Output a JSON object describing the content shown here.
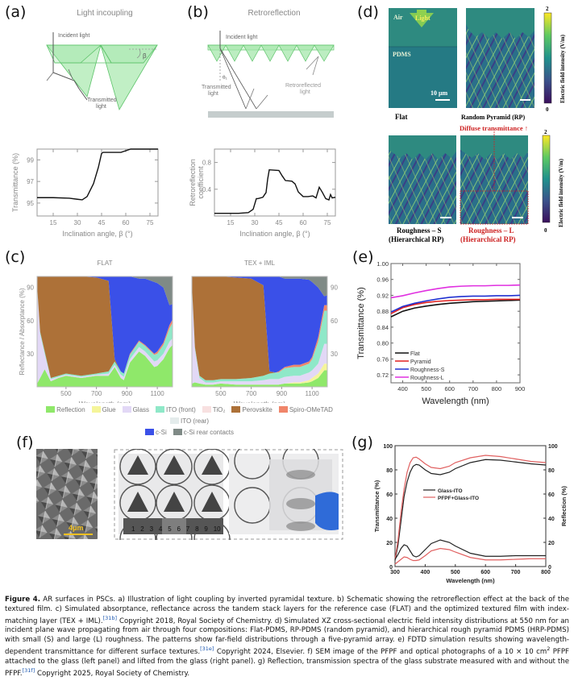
{
  "panels": {
    "a": {
      "label": "(a)",
      "title": "Light incoupling",
      "annotations": {
        "incident": "Incident light",
        "transmitted_1": "Transmitted",
        "transmitted_2": "light",
        "beta": "β"
      },
      "chart": {
        "type": "line",
        "xlabel": "Inclination angle, β (°)",
        "ylabel": "Transmittance (%)",
        "xticks": [
          "15",
          "30",
          "45",
          "60",
          "75"
        ],
        "yticks": [
          "95",
          "97",
          "99"
        ],
        "xlim": [
          5,
          80
        ],
        "ylim": [
          93.8,
          100
        ],
        "x": [
          5,
          15,
          25,
          30,
          33,
          36,
          40,
          43,
          45,
          46,
          50,
          57,
          60,
          63,
          70,
          80
        ],
        "y": [
          95.5,
          95.5,
          95.45,
          95.35,
          95.3,
          95.6,
          96.8,
          98.3,
          99.6,
          99.7,
          99.7,
          99.7,
          99.85,
          100,
          100,
          100
        ]
      }
    },
    "b": {
      "label": "(b)",
      "title": "Retroreflection",
      "annotations": {
        "incident": "Incident light",
        "transmitted_1": "Transmitted",
        "transmitted_2": "light",
        "retro_1": "Retroreflected",
        "retro_2": "light",
        "theta": "θ₁"
      },
      "chart": {
        "type": "line",
        "xlabel": "Inclination angle, β (°)",
        "ylabel_1": "Retroreflection",
        "ylabel_2": "coefficient",
        "xticks": [
          "15",
          "30",
          "45",
          "60",
          "75"
        ],
        "yticks": [
          "0.4",
          "0.8"
        ],
        "xlim": [
          5,
          80
        ],
        "ylim": [
          0,
          1.0
        ],
        "x": [
          5,
          20,
          26,
          29,
          30,
          31,
          32,
          35,
          37,
          38,
          39,
          45,
          47,
          49,
          53,
          55,
          57,
          60,
          63,
          66,
          68,
          70,
          72,
          74,
          76,
          77,
          78,
          80
        ],
        "y": [
          0.04,
          0.04,
          0.05,
          0.1,
          0.18,
          0.26,
          0.26,
          0.28,
          0.35,
          0.55,
          0.69,
          0.68,
          0.6,
          0.53,
          0.52,
          0.48,
          0.36,
          0.29,
          0.29,
          0.3,
          0.27,
          0.43,
          0.35,
          0.26,
          0.24,
          0.32,
          0.27,
          0.28
        ]
      }
    },
    "c": {
      "label": "(c)",
      "chart": {
        "type": "area",
        "xlabel": "Wavelength (nm)",
        "ylabel": "Reflectance / Absorptance (%)",
        "xticks": [
          "500",
          "700",
          "900",
          "1100"
        ],
        "yticks": [
          "30",
          "60",
          "90"
        ],
        "xlim": [
          310,
          1200
        ],
        "ylim": [
          0,
          100
        ],
        "subplots": [
          {
            "title": "FLAT",
            "y_axis_side": "left"
          },
          {
            "title": "TEX + IML",
            "y_axis_side": "right"
          }
        ],
        "legend": [
          {
            "name": "Reflection",
            "color": "#8fe86a"
          },
          {
            "name": "Glue",
            "color": "#f5f59a"
          },
          {
            "name": "Glass",
            "color": "#e2d8f6"
          },
          {
            "name": "ITO (front)",
            "color": "#8fe8c8"
          },
          {
            "name": "TiO₂",
            "color": "#f8e0e0"
          },
          {
            "name": "Perovskite",
            "color": "#ad7138"
          },
          {
            "name": "Spiro-OMeTAD",
            "color": "#f0856a"
          },
          {
            "name": "ITO (rear)",
            "color": "#e4ecec"
          },
          {
            "name": "c-Si",
            "color": "#3a50e8"
          },
          {
            "name": "c-Si rear contacts",
            "color": "#7f8a86"
          }
        ]
      }
    },
    "d": {
      "label": "(d)",
      "maps": [
        {
          "caption_1": "Flat",
          "caption_2": "",
          "red": false
        },
        {
          "caption_1": "Random Pyramid (RP)",
          "caption_2": "",
          "red": false
        },
        {
          "caption_1": "Roughness – S",
          "caption_2": "(Hierarchical RP)",
          "red": false
        },
        {
          "caption_1": "Roughness – L",
          "caption_2": "(Hierarchical RP)",
          "red": true
        }
      ],
      "air_label": "Air",
      "light_label": "Light",
      "pdms_label": "PDMS",
      "scale_label": "10 μm",
      "diffuse_label": "Diffuse transmittance ↑",
      "colorbar": {
        "title": "Electric field intensity (V/m)",
        "max": "2",
        "min": "0"
      }
    },
    "e": {
      "label": "(e)",
      "chart": {
        "type": "line",
        "xlabel": "Wavelength (nm)",
        "ylabel": "Transmittance (%)",
        "xticks": [
          "400",
          "500",
          "600",
          "700",
          "800",
          "900"
        ],
        "yticks": [
          "0.72",
          "0.76",
          "0.80",
          "0.84",
          "0.88",
          "0.92",
          "0.96",
          "1.00"
        ],
        "xlim": [
          350,
          900
        ],
        "ylim": [
          0.7,
          1.0
        ],
        "x": [
          350,
          400,
          450,
          500,
          550,
          600,
          650,
          700,
          750,
          800,
          850,
          900
        ],
        "series": [
          {
            "name": "Flat",
            "color": "#111111",
            "values": [
              0.866,
              0.88,
              0.888,
              0.893,
              0.897,
              0.9,
              0.902,
              0.904,
              0.905,
              0.906,
              0.907,
              0.908
            ]
          },
          {
            "name": "Pyramid",
            "color": "#e02020",
            "values": [
              0.874,
              0.889,
              0.897,
              0.902,
              0.905,
              0.907,
              0.908,
              0.909,
              0.909,
              0.91,
              0.91,
              0.91
            ]
          },
          {
            "name": "Roughness-S",
            "color": "#2030d0",
            "values": [
              0.878,
              0.892,
              0.9,
              0.906,
              0.911,
              0.915,
              0.917,
              0.918,
              0.918,
              0.919,
              0.919,
              0.92
            ]
          },
          {
            "name": "Roughness-L",
            "color": "#e030e0",
            "values": [
              0.914,
              0.919,
              0.926,
              0.932,
              0.937,
              0.941,
              0.943,
              0.944,
              0.944,
              0.945,
              0.945,
              0.946
            ]
          }
        ]
      }
    },
    "f": {
      "label": "(f)",
      "scale_label": "4μm",
      "ruler_numbers": [
        "1",
        "2",
        "3",
        "4",
        "5",
        "6",
        "7",
        "8",
        "9",
        "10"
      ]
    },
    "g": {
      "label": "(g)",
      "chart": {
        "type": "line",
        "xlabel": "Wavelength (nm)",
        "ylabel_left": "Transmittance (%)",
        "ylabel_right": "Reflection (%)",
        "xticks": [
          "300",
          "400",
          "500",
          "600",
          "700",
          "800"
        ],
        "yticks": [
          "0",
          "20",
          "40",
          "60",
          "80",
          "100"
        ],
        "xlim": [
          300,
          800
        ],
        "ylim": [
          0,
          100
        ],
        "x": [
          300,
          310,
          320,
          330,
          340,
          350,
          360,
          370,
          380,
          400,
          420,
          450,
          480,
          500,
          550,
          600,
          650,
          700,
          750,
          800
        ],
        "series": [
          {
            "name": "Glass-ITO",
            "color": "#222222",
            "kind": "transmittance",
            "values": [
              5,
              18,
              38,
              58,
              70,
              78,
              83,
              84.5,
              84,
              80,
              77,
              76,
              78,
              81,
              86,
              88.5,
              88,
              86.5,
              85,
              84
            ]
          },
          {
            "name": "PFPF+Glass-ITO",
            "color": "#e06060",
            "kind": "transmittance",
            "values": [
              6,
              22,
              45,
              64,
              78,
              86,
              90,
              90.5,
              89,
              85,
              82,
              81,
              83,
              86,
              90,
              92,
              91,
              89,
              87,
              86
            ]
          },
          {
            "name": "Glass-ITO",
            "color": "#222222",
            "kind": "reflection",
            "values": [
              6,
              10,
              15,
              18,
              17,
              13,
              9,
              8,
              9,
              14,
              19,
              22,
              20,
              17,
              11,
              8.5,
              8.5,
              9,
              9,
              9
            ]
          },
          {
            "name": "PFPF+Glass-ITO",
            "color": "#e06060",
            "kind": "reflection",
            "values": [
              2,
              4,
              6,
              8,
              7.5,
              6,
              5,
              5,
              5.5,
              9,
              13,
              15,
              14,
              12,
              7.5,
              5.5,
              5.5,
              6,
              6.5,
              6.5
            ]
          }
        ],
        "legend": [
          "Glass-ITO",
          "PFPF+Glass-ITO"
        ]
      }
    }
  },
  "caption": {
    "figure_label": "Figure 4.",
    "p1": " AR surfaces in PSCs. a) Illustration of light coupling by inverted pyramidal texture. b) Schematic showing the retroreflection effect at the back of the textured film. c) Simulated absorptance, reflectance across the tandem stack layers for the reference case (FLAT) and the optimized textured film with index-matching layer (TEX + IML).",
    "ref1": "[31b]",
    "p2": " Copyright 2018, Royal Society of Chemistry. d) Simulated XZ cross-sectional electric field intensity distributions at 550 nm for an incident plane wave propagating from air through four compositions: Flat-PDMS, RP-PDMS (random pyramid), and hierarchical rough pyramid PDMS (HRP-PDMS) with small (S) and large (L) roughness. The patterns show far-field distributions through a five-pyramid array. e) FDTD simulation results showing wavelength-dependent transmittance for different surface textures.",
    "ref2": "[31e]",
    "p3": " Copyright 2024, Elsevier. f) SEM image of the PFPF and optical photographs of a 10 × 10 cm",
    "sup2": "2",
    "p4": " PFPF attached to the glass (left panel) and lifted from the glass (right panel). g) Reflection, transmission spectra of the glass substrate measured with and without the PFPF.",
    "ref3": "[31f]",
    "p5": " Copyright 2025, Royal Society of Chemistry."
  }
}
